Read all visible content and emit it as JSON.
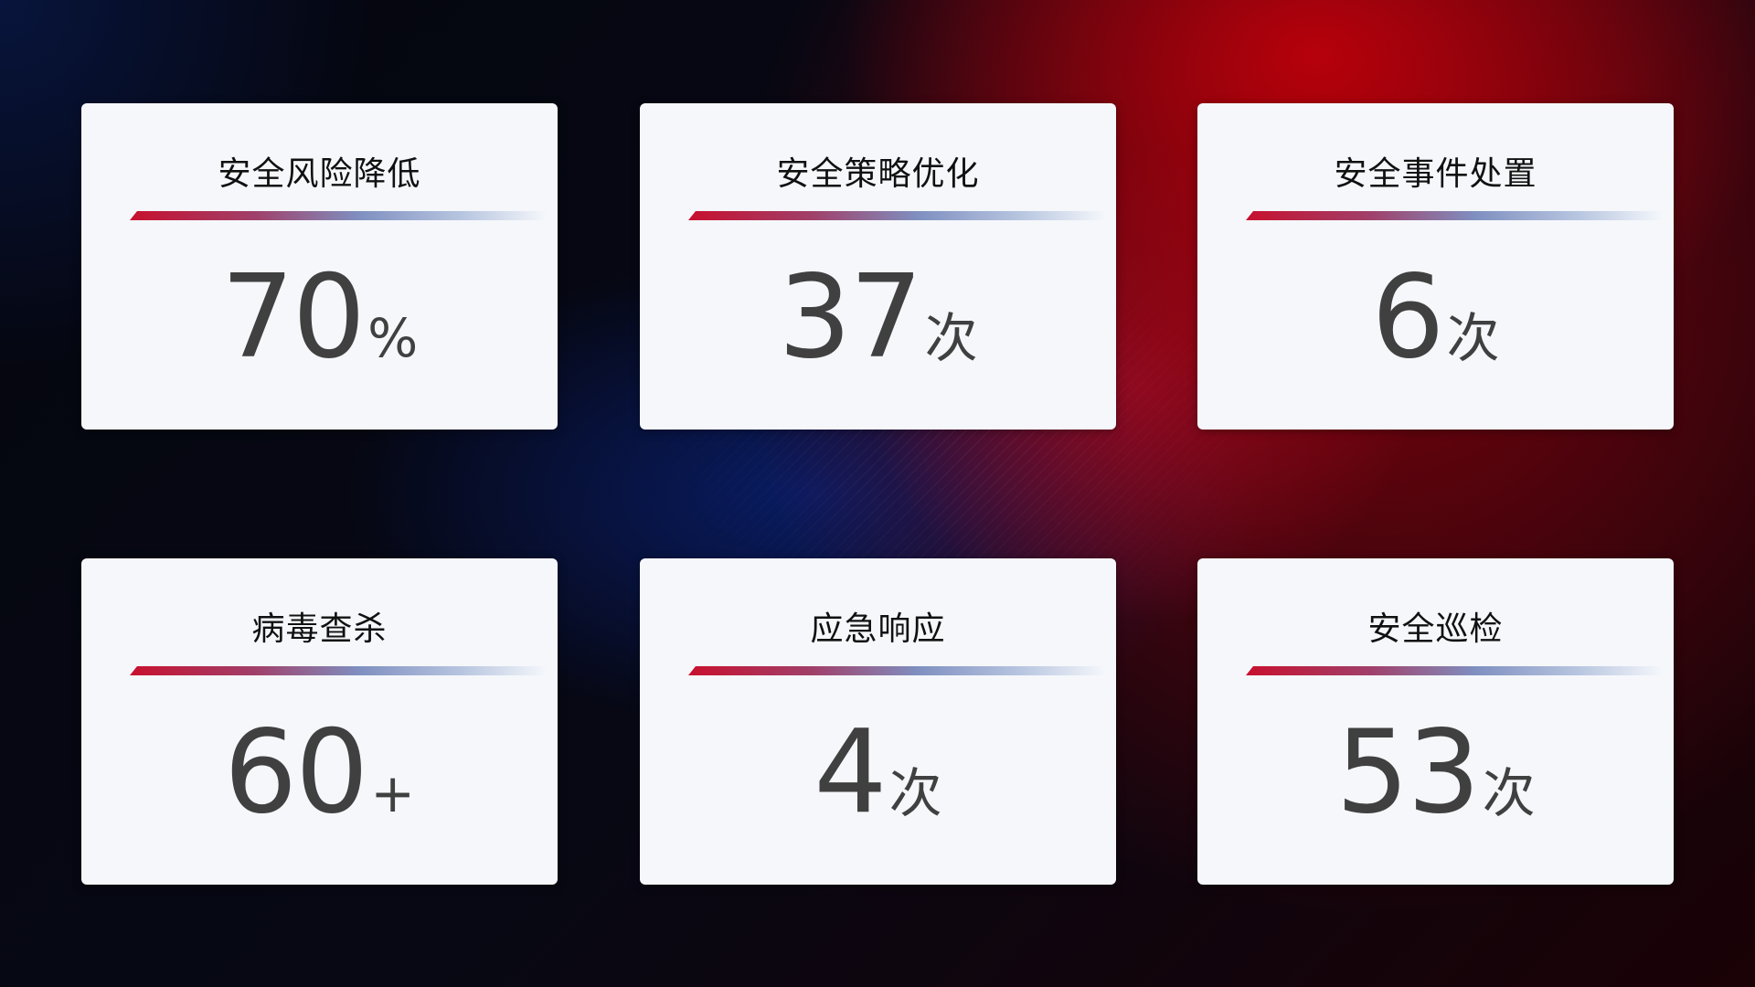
{
  "cards": [
    {
      "title": "安全风险降低",
      "value": "70",
      "unit": "%"
    },
    {
      "title": "安全策略优化",
      "value": "37",
      "unit": "次"
    },
    {
      "title": "安全事件处置",
      "value": "6",
      "unit": "次"
    },
    {
      "title": "病毒查杀",
      "value": "60",
      "unit": "+"
    },
    {
      "title": "应急响应",
      "value": "4",
      "unit": "次"
    },
    {
      "title": "安全巡检",
      "value": "53",
      "unit": "次"
    }
  ],
  "colors": {
    "accent_red": "#c8102e",
    "accent_blue": "#7f8fc0",
    "card_bg": "#f5f7fb",
    "value_text": "#404040"
  }
}
